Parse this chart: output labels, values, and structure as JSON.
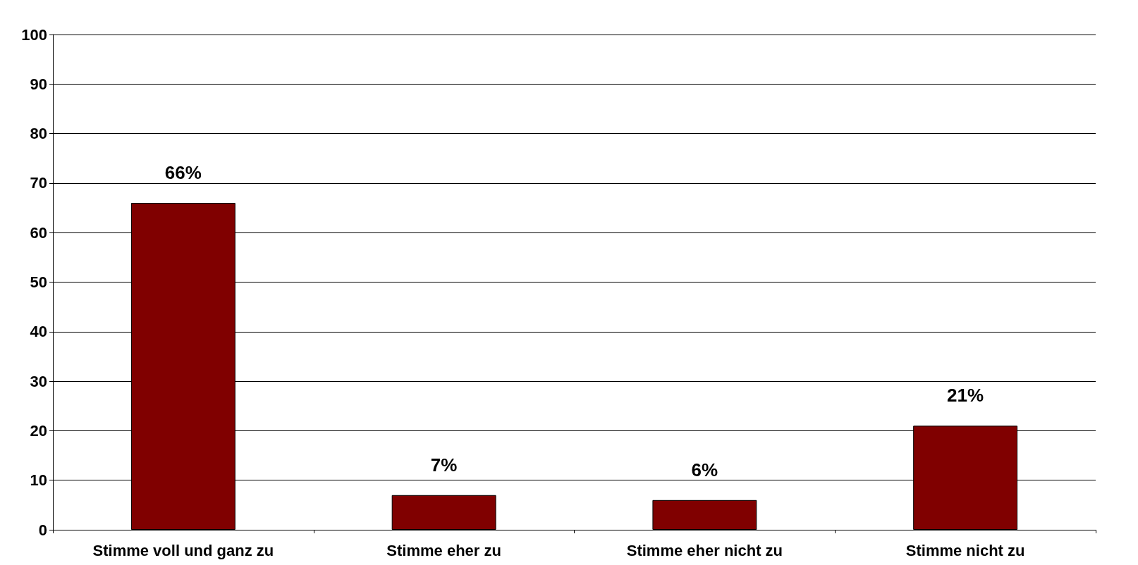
{
  "chart_data": {
    "type": "bar",
    "categories": [
      "Stimme voll und ganz zu",
      "Stimme eher zu",
      "Stimme eher nicht zu",
      "Stimme nicht zu"
    ],
    "values": [
      66,
      7,
      6,
      21
    ],
    "value_labels": [
      "66%",
      "7%",
      "6%",
      "21%"
    ],
    "color": "#800000",
    "ylim": [
      0,
      100
    ],
    "yticks": [
      0,
      10,
      20,
      30,
      40,
      50,
      60,
      70,
      80,
      90,
      100
    ],
    "grid": "y"
  }
}
